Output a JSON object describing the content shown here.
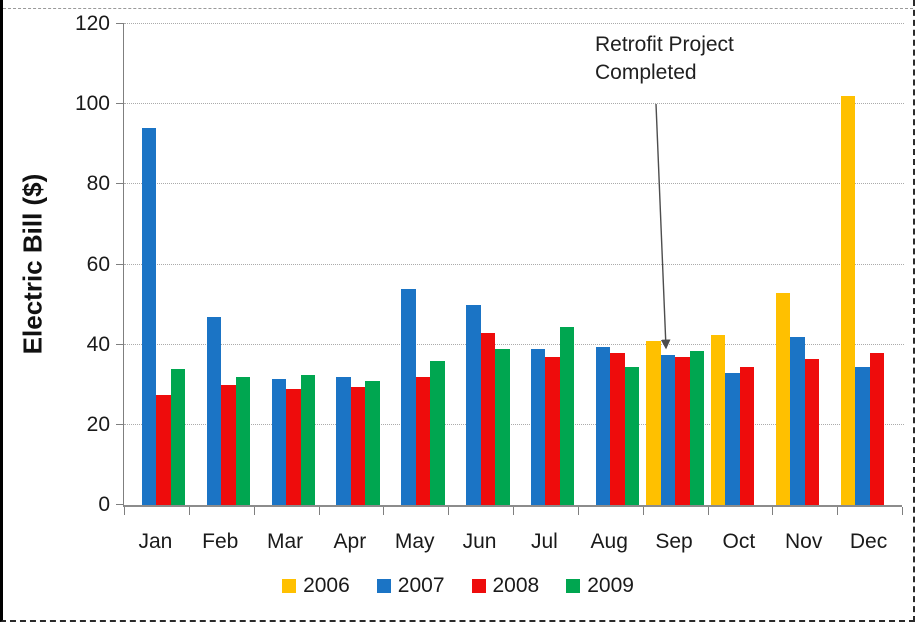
{
  "chart_data": {
    "type": "bar",
    "title": "",
    "xlabel": "",
    "ylabel": "Electric Bill ($)",
    "categories": [
      "Jan",
      "Feb",
      "Mar",
      "Apr",
      "May",
      "Jun",
      "Jul",
      "Aug",
      "Sep",
      "Oct",
      "Nov",
      "Dec"
    ],
    "series": [
      {
        "name": "2006",
        "color": "#FFC000",
        "values": [
          null,
          null,
          null,
          null,
          null,
          null,
          null,
          null,
          41,
          42.5,
          53,
          102
        ]
      },
      {
        "name": "2007",
        "color": "#1B74C5",
        "values": [
          94,
          47,
          31.5,
          32,
          54,
          50,
          39,
          39.5,
          37.5,
          33,
          42,
          34.5
        ]
      },
      {
        "name": "2008",
        "color": "#EE0C0C",
        "values": [
          27.5,
          30,
          29,
          29.5,
          32,
          43,
          37,
          38,
          37,
          34.5,
          36.5,
          38
        ]
      },
      {
        "name": "2009",
        "color": "#00A650",
        "values": [
          34,
          32,
          32.5,
          31,
          36,
          39,
          44.5,
          34.5,
          38.5,
          null,
          null,
          null
        ]
      }
    ],
    "ylim": [
      0,
      120
    ],
    "ytick_step": 20,
    "grid": true,
    "legend_position": "bottom",
    "annotation": {
      "text": "Retrofit Project Completed",
      "target_category": "Sep"
    }
  },
  "annotation": {
    "line1": "Retrofit Project",
    "line2": "Completed"
  },
  "colors": {
    "axis": "#7f7f7f",
    "gridline": "#ababab",
    "text": "#1a1a1a",
    "arrow": "#4d4d4d",
    "series_2006": "#FFC000",
    "series_2007": "#1B74C5",
    "series_2008": "#EE0C0C",
    "series_2009": "#00A650"
  }
}
